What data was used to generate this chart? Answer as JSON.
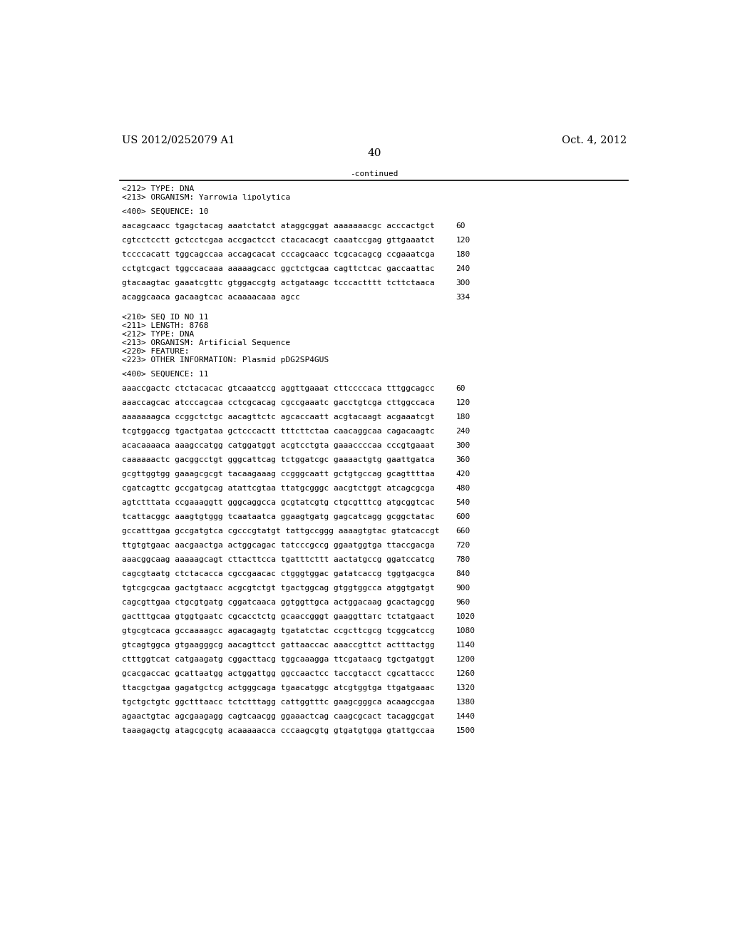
{
  "header_left": "US 2012/0252079 A1",
  "header_right": "Oct. 4, 2012",
  "page_number": "40",
  "continued_text": "-continued",
  "background_color": "#ffffff",
  "text_color": "#000000",
  "font_size_header": 10.5,
  "font_size_body": 8.0,
  "font_size_page": 11,
  "content": [
    {
      "type": "meta",
      "text": "<212> TYPE: DNA"
    },
    {
      "type": "meta",
      "text": "<213> ORGANISM: Yarrowia lipolytica"
    },
    {
      "type": "blank"
    },
    {
      "type": "meta",
      "text": "<400> SEQUENCE: 10"
    },
    {
      "type": "blank"
    },
    {
      "type": "seq",
      "text": "aacagcaacc tgagctacag aaatctatct ataggcggat aaaaaaacgc acccactgct",
      "num": "60"
    },
    {
      "type": "blank"
    },
    {
      "type": "seq",
      "text": "cgtcctcctt gctcctcgaa accgactcct ctacacacgt caaatccgag gttgaaatct",
      "num": "120"
    },
    {
      "type": "blank"
    },
    {
      "type": "seq",
      "text": "tccccacatt tggcagccaa accagcacat cccagcaacc tcgcacagcg ccgaaatcga",
      "num": "180"
    },
    {
      "type": "blank"
    },
    {
      "type": "seq",
      "text": "cctgtcgact tggccacaaa aaaaagcacc ggctctgcaa cagttctcac gaccaattac",
      "num": "240"
    },
    {
      "type": "blank"
    },
    {
      "type": "seq",
      "text": "gtacaagtac gaaatcgttc gtggaccgtg actgataagc tcccactttt tcttctaaca",
      "num": "300"
    },
    {
      "type": "blank"
    },
    {
      "type": "seq",
      "text": "acaggcaaca gacaagtcac acaaaacaaa agcc",
      "num": "334"
    },
    {
      "type": "blank"
    },
    {
      "type": "blank"
    },
    {
      "type": "meta",
      "text": "<210> SEQ ID NO 11"
    },
    {
      "type": "meta",
      "text": "<211> LENGTH: 8768"
    },
    {
      "type": "meta",
      "text": "<212> TYPE: DNA"
    },
    {
      "type": "meta",
      "text": "<213> ORGANISM: Artificial Sequence"
    },
    {
      "type": "meta",
      "text": "<220> FEATURE:"
    },
    {
      "type": "meta",
      "text": "<223> OTHER INFORMATION: Plasmid pDG2SP4GUS"
    },
    {
      "type": "blank"
    },
    {
      "type": "meta",
      "text": "<400> SEQUENCE: 11"
    },
    {
      "type": "blank"
    },
    {
      "type": "seq",
      "text": "aaaccgactc ctctacacac gtcaaatccg aggttgaaat cttccccaca tttggcagcc",
      "num": "60"
    },
    {
      "type": "blank"
    },
    {
      "type": "seq",
      "text": "aaaccagcac atcccagcaa cctcgcacag cgccgaaatc gacctgtcga cttggccaca",
      "num": "120"
    },
    {
      "type": "blank"
    },
    {
      "type": "seq",
      "text": "aaaaaaagca ccggctctgc aacagttctc agcaccaatt acgtacaagt acgaaatcgt",
      "num": "180"
    },
    {
      "type": "blank"
    },
    {
      "type": "seq",
      "text": "tcgtggaccg tgactgataa gctcccactt tttcttctaa caacaggcaa cagacaagtc",
      "num": "240"
    },
    {
      "type": "blank"
    },
    {
      "type": "seq",
      "text": "acacaaaaca aaagccatgg catggatggt acgtcctgta gaaaccccaa cccgtgaaat",
      "num": "300"
    },
    {
      "type": "blank"
    },
    {
      "type": "seq",
      "text": "caaaaaactc gacggcctgt gggcattcag tctggatcgc gaaaactgtg gaattgatca",
      "num": "360"
    },
    {
      "type": "blank"
    },
    {
      "type": "seq",
      "text": "gcgttggtgg gaaagcgcgt tacaagaaag ccgggcaatt gctgtgccag gcagttttaa",
      "num": "420"
    },
    {
      "type": "blank"
    },
    {
      "type": "seq",
      "text": "cgatcagttc gccgatgcag atattcgtaa ttatgcgggc aacgtctggt atcagcgcga",
      "num": "480"
    },
    {
      "type": "blank"
    },
    {
      "type": "seq",
      "text": "agtctttata ccgaaaggtt gggcaggcca gcgtatcgtg ctgcgtttcg atgcggtcac",
      "num": "540"
    },
    {
      "type": "blank"
    },
    {
      "type": "seq",
      "text": "tcattacggc aaagtgtggg tcaataatca ggaagtgatg gagcatcagg gcggctatac",
      "num": "600"
    },
    {
      "type": "blank"
    },
    {
      "type": "seq",
      "text": "gccatttgaa gccgatgtca cgcccgtatgt tattgccggg aaaagtgtac gtatcaccgt",
      "num": "660"
    },
    {
      "type": "blank"
    },
    {
      "type": "seq",
      "text": "ttgtgtgaac aacgaactga actggcagac tatcccgccg ggaatggtga ttaccgacga",
      "num": "720"
    },
    {
      "type": "blank"
    },
    {
      "type": "seq",
      "text": "aaacggcaag aaaaagcagt cttacttcca tgatttcttt aactatgccg ggatccatcg",
      "num": "780"
    },
    {
      "type": "blank"
    },
    {
      "type": "seq",
      "text": "cagcgtaatg ctctacacca cgccgaacac ctgggtggac gatatcaccg tggtgacgca",
      "num": "840"
    },
    {
      "type": "blank"
    },
    {
      "type": "seq",
      "text": "tgtcgcgcaa gactgtaacc acgcgtctgt tgactggcag gtggtggcca atggtgatgt",
      "num": "900"
    },
    {
      "type": "blank"
    },
    {
      "type": "seq",
      "text": "cagcgttgaa ctgcgtgatg cggatcaaca ggtggttgca actggacaag gcactagcgg",
      "num": "960"
    },
    {
      "type": "blank"
    },
    {
      "type": "seq",
      "text": "gactttgcaa gtggtgaatc cgcacctctg gcaaccgggt gaaggttатс tctatgaact",
      "num": "1020"
    },
    {
      "type": "blank"
    },
    {
      "type": "seq",
      "text": "gtgcgtcaca gccaaaagcc agacagagtg tgatatctac ccgcttcgcg tcggcatccg",
      "num": "1080"
    },
    {
      "type": "blank"
    },
    {
      "type": "seq",
      "text": "gtcagtggca gtgaagggcg aacagttcct gattaaccac aaaccgttct actttactgg",
      "num": "1140"
    },
    {
      "type": "blank"
    },
    {
      "type": "seq",
      "text": "ctttggtcat catgaagatg cggacttacg tggcaaagga ttcgataacg tgctgatggt",
      "num": "1200"
    },
    {
      "type": "blank"
    },
    {
      "type": "seq",
      "text": "gcacgaccac gcattaatgg actggattgg ggccaactcc taccgtacct cgcattaccc",
      "num": "1260"
    },
    {
      "type": "blank"
    },
    {
      "type": "seq",
      "text": "ttacgctgaa gagatgctcg actgggcaga tgaacatggc atcgtggtga ttgatgaaac",
      "num": "1320"
    },
    {
      "type": "blank"
    },
    {
      "type": "seq",
      "text": "tgctgctgtc ggctttaacc tctctttаgg cattggtttc gaagcgggca acaagccgaa",
      "num": "1380"
    },
    {
      "type": "blank"
    },
    {
      "type": "seq",
      "text": "agaactgtac agcgaagagg cagtcaacgg ggaaactcag caagcgcact tacaggcgat",
      "num": "1440"
    },
    {
      "type": "blank"
    },
    {
      "type": "seq",
      "text": "taaagagctg atagcgcgtg acaaaaacca cccaagcgtg gtgatgtgga gtattgccaa",
      "num": "1500"
    }
  ]
}
